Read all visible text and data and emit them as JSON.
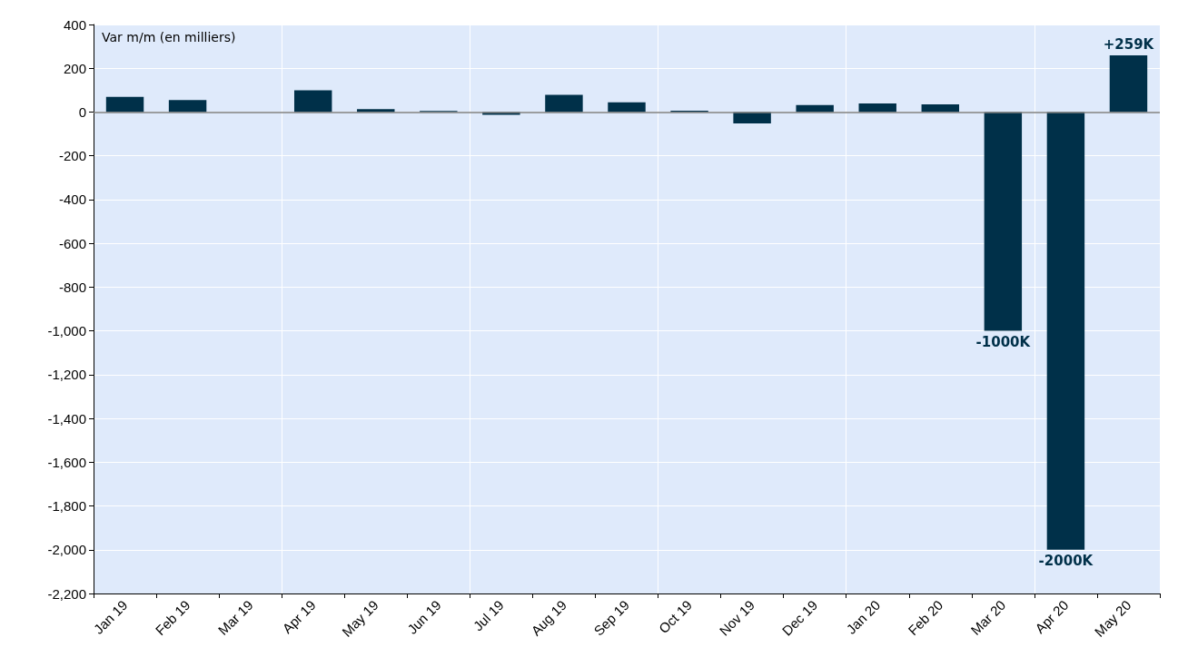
{
  "chart_data": {
    "type": "bar",
    "ylabel": "Var m/m (en milliers)",
    "categories": [
      "Jan 19",
      "Feb 19",
      "Mar 19",
      "Apr 19",
      "May 19",
      "Jun 19",
      "Jul 19",
      "Aug 19",
      "Sep 19",
      "Oct 19",
      "Nov 19",
      "Dec 19",
      "Jan 20",
      "Feb 20",
      "Mar 20",
      "Apr 20",
      "May 20"
    ],
    "values": [
      69,
      55,
      0,
      99,
      13,
      5,
      -13,
      79,
      44,
      6,
      -52,
      32,
      39,
      35,
      -1000,
      -2000,
      259
    ],
    "value_labels": [
      null,
      null,
      null,
      null,
      null,
      null,
      null,
      null,
      null,
      null,
      null,
      null,
      null,
      null,
      "-1000K",
      "-2000K",
      "+259K"
    ],
    "color": "#003049",
    "ylim": [
      -2200,
      400
    ],
    "yticks": [
      400,
      200,
      0,
      -200,
      -400,
      -600,
      -800,
      {
        "value": -1000,
        "label": "-1,000"
      },
      {
        "value": -1200,
        "label": "-1,200"
      },
      {
        "value": -1400,
        "label": "-1,400"
      },
      {
        "value": -1600,
        "label": "-1,600"
      },
      {
        "value": -1800,
        "label": "-1,800"
      },
      {
        "value": -2000,
        "label": "-2,000"
      },
      {
        "value": -2200,
        "label": "-2,200"
      }
    ],
    "ref_lines": [
      {
        "axis": "y",
        "value": 0,
        "color": "#7f7f7f"
      }
    ],
    "grid": true
  }
}
